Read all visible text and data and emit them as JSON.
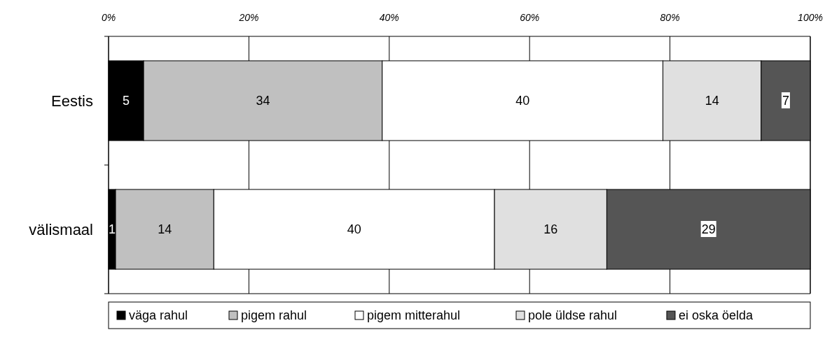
{
  "chart_data": {
    "type": "bar",
    "orientation": "horizontal",
    "stacked": true,
    "categories": [
      "Eestis",
      "välismaal"
    ],
    "series": [
      {
        "name": "väga rahul",
        "color": "#000000",
        "values": [
          5,
          1
        ]
      },
      {
        "name": "pigem rahul",
        "color": "#c0c0c0",
        "values": [
          34,
          14
        ]
      },
      {
        "name": "pigem mitterahul",
        "color": "#ffffff",
        "values": [
          40,
          40
        ]
      },
      {
        "name": "pole üldse rahul",
        "color": "#e0e0e0",
        "values": [
          14,
          16
        ]
      },
      {
        "name": "ei oska öelda",
        "color": "#555555",
        "values": [
          7,
          29
        ]
      }
    ],
    "xlim": [
      0,
      100
    ],
    "xticks": [
      {
        "value": 0,
        "label": "0%"
      },
      {
        "value": 20,
        "label": "20%"
      },
      {
        "value": 40,
        "label": "40%"
      },
      {
        "value": 60,
        "label": "60%"
      },
      {
        "value": 80,
        "label": "80%"
      },
      {
        "value": 100,
        "label": "100%"
      }
    ],
    "grid": "x",
    "legend": "bottom",
    "data_labels": true
  }
}
